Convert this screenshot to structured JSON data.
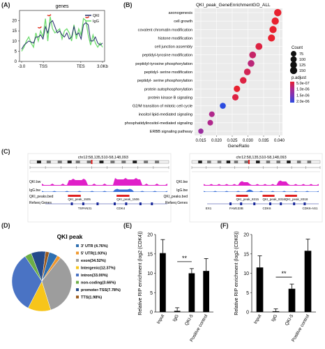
{
  "panels": {
    "A": "(A)",
    "B": "(B)",
    "C": "(C)",
    "D": "(D)",
    "E": "(E)",
    "F": "(F)"
  },
  "chart_data": [
    {
      "id": "A",
      "type": "line",
      "title": "genes",
      "ylim": [
        0,
        25
      ],
      "yticks": [
        0,
        5,
        10,
        15,
        20
      ],
      "xtick_labels": [
        "-3.0",
        "TSS",
        "TES",
        "3.0Kb"
      ],
      "legend": [
        "QKI",
        "IgG"
      ],
      "colors": {
        "QKI": "#1f2a66",
        "IgG": "#6ddc6d",
        "peak_marks": "#e0301e"
      },
      "series": [
        {
          "name": "QKI",
          "values": [
            6,
            8,
            9,
            10,
            9.5,
            9,
            12,
            12,
            13,
            11,
            17,
            14,
            19,
            20,
            17,
            14,
            15,
            13,
            12,
            14,
            11,
            12,
            17,
            13,
            14,
            11,
            18,
            19,
            18,
            10,
            10,
            12,
            9,
            8,
            9
          ]
        },
        {
          "name": "IgG",
          "values": [
            5,
            7,
            10,
            12,
            9,
            7,
            14,
            10,
            15,
            12,
            21,
            10,
            22,
            16,
            14,
            15,
            16,
            11,
            15,
            16,
            14,
            10,
            18,
            11,
            16,
            13,
            21,
            20,
            13,
            8,
            13,
            9,
            7,
            9,
            7
          ]
        }
      ]
    },
    {
      "id": "B",
      "type": "scatter",
      "title": "QKI_peak_GeneEnrichmentGO_ALL",
      "xlabel": "GeneRatio",
      "xlim": [
        0.013,
        0.041
      ],
      "xticks": [
        "0.015",
        "0.020",
        "0.025",
        "0.030",
        "0.035",
        "0.040"
      ],
      "categories": [
        "axonogenesis",
        "cell growth",
        "covalent chromatin modification",
        "histone modification",
        "cell junction assembly",
        "peptidyl-tyrosine modification",
        "peptidyl-tyrosine phosphorylation",
        "peptidyl- serine modification",
        "peptidyl- serine phosphorylation",
        "protein autophosphorylation",
        "protein kinase B signaling",
        "G2/M transition of mitotic cell cycle",
        "inositol lipid-mediated signaling",
        "phosphatidylinositol-mediated signaling",
        "ERBB signaling pathway"
      ],
      "x": [
        0.0395,
        0.0387,
        0.038,
        0.0375,
        0.0335,
        0.0315,
        0.031,
        0.0298,
        0.0285,
        0.0265,
        0.026,
        0.022,
        0.0185,
        0.018,
        0.015
      ],
      "count": [
        160,
        155,
        150,
        145,
        135,
        130,
        128,
        125,
        120,
        112,
        110,
        95,
        80,
        78,
        65
      ],
      "p_adjust": [
        1e-08,
        3e-08,
        2e-07,
        3e-07,
        6e-07,
        8e-07,
        9e-07,
        7e-07,
        6e-07,
        5e-07,
        6e-07,
        2e-06,
        1e-06,
        1e-06,
        1.2e-06
      ],
      "legend_count_title": "Count",
      "legend_counts": [
        "75",
        "100",
        "125",
        "150"
      ],
      "legend_p_title": "p.adjust",
      "legend_p": [
        "5.0e-07",
        "1.0e-06",
        "1.5e-06",
        "2.0e-06"
      ],
      "p_range": [
        5e-07,
        2e-06
      ],
      "p_colors": [
        "#e8212f",
        "#b0288c",
        "#7a35b8",
        "#2b4be0"
      ]
    },
    {
      "id": "C",
      "type": "area",
      "left_region": "chr12:58,135,510-58,148,093",
      "right_region": "chr12:58,135,510-58,148,093",
      "track_labels": [
        "QKI.bw",
        "IgG.bw",
        "QKI_peaks.bed",
        "Refseq Genes"
      ],
      "left_peaks": [
        "QKI_peak_1505",
        "QKI_peak_1506"
      ],
      "left_genes": [
        "TSPAN31",
        "CDK4"
      ],
      "right_peaks": [
        "QKI_peak_8315",
        "QKI_peak_8316",
        "QKI_peak_8318"
      ],
      "right_genes": [
        "EX1",
        "FAM133B",
        "CDK6",
        "CDK6-AS1"
      ],
      "colors": {
        "qki": "#e020c8",
        "igg": "#3a6fd8",
        "peak": "#e02020",
        "gene": "#1a2a9a"
      }
    },
    {
      "id": "D",
      "type": "pie",
      "title": "QKI peak",
      "slices": [
        {
          "label": "3' UTR (4.76%)",
          "value": 4.76,
          "color": "#2e6fb0"
        },
        {
          "label": "5' UTR(1.93%)",
          "value": 1.93,
          "color": "#f0982e"
        },
        {
          "label": "exon(34.52%)",
          "value": 34.52,
          "color": "#9d9d9d"
        },
        {
          "label": "Intergenic(12.37%)",
          "value": 12.37,
          "color": "#f7c51a"
        },
        {
          "label": "intron(33.00%)",
          "value": 33.0,
          "color": "#4a73c4"
        },
        {
          "label": "non-coding(3.66%)",
          "value": 3.66,
          "color": "#6cae46"
        },
        {
          "label": "promoter-TSS(7.78%)",
          "value": 7.78,
          "color": "#244a8a"
        },
        {
          "label": "TTS(1.98%)",
          "value": 1.98,
          "color": "#9a5a1e"
        }
      ]
    },
    {
      "id": "E",
      "type": "bar",
      "ylabel": "Relative RIP enrichment (log2 (CDK4))",
      "categories": [
        "Input",
        "IgG",
        "QKI-5",
        "Positive control"
      ],
      "values": [
        15.2,
        0.3,
        10.0,
        10.6
      ],
      "errors": [
        3.5,
        0.8,
        1.2,
        3.2
      ],
      "ylim": [
        0,
        20
      ],
      "yticks": [
        "0",
        "5",
        "10",
        "15",
        "20"
      ],
      "annotation": "**"
    },
    {
      "id": "F",
      "type": "bar",
      "ylabel": "Relative RIP enrichment (log2 (CDK6))",
      "categories": [
        "Input",
        "IgG",
        "QKI-5",
        "Positive control"
      ],
      "values": [
        11.5,
        0.2,
        6.0,
        15.8
      ],
      "errors": [
        3.0,
        0.6,
        1.2,
        3.0
      ],
      "ylim": [
        0,
        20
      ],
      "yticks": [
        "0",
        "5",
        "10",
        "15",
        "20"
      ],
      "annotation": "**"
    }
  ]
}
